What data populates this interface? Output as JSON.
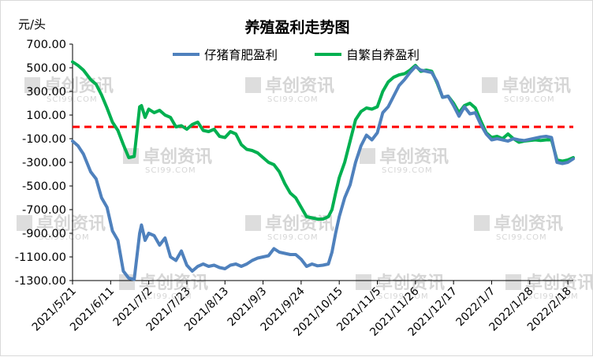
{
  "chart_data": {
    "type": "line",
    "title": "养殖盈利走势图",
    "unit_label": "元/头",
    "ylim": [
      -1300,
      700
    ],
    "y_ticks": [
      700,
      500,
      300,
      100,
      -100,
      -300,
      -500,
      -700,
      -900,
      -1100,
      -1300
    ],
    "y_tick_labels": [
      "700.00",
      "500.00",
      "300.00",
      "100.00",
      "-100.00",
      "-300.00",
      "-500.00",
      "-700.00",
      "-900.00",
      "-1100.00",
      "-1300.00"
    ],
    "x_start_date": "2021-05-21",
    "x_end_date": "2022-02-21",
    "x_tick_dates": [
      "2021-05-21",
      "2021-06-11",
      "2021-07-02",
      "2021-07-23",
      "2021-08-13",
      "2021-09-03",
      "2021-09-24",
      "2021-10-15",
      "2021-11-05",
      "2021-11-26",
      "2021-12-17",
      "2022-01-07",
      "2022-01-28",
      "2022-02-18"
    ],
    "x_tick_labels": [
      "2021/5/21",
      "2021/6/11",
      "2021/7/2",
      "2021/7/23",
      "2021/8/13",
      "2021/9/3",
      "2021/9/24",
      "2021/10/15",
      "2021/11/5",
      "2021/11/26",
      "2021/12/17",
      "2022/1/7",
      "2022/1/28",
      "2022/2/18"
    ],
    "reference_line": {
      "value": 0,
      "color": "#ff0000",
      "style": "dashed"
    },
    "grid": false,
    "legend_position": "top",
    "watermark": {
      "text_cn": "卓创资讯",
      "text_en": "SCI99.COM"
    },
    "series": [
      {
        "name": "仔猪育肥盈利",
        "color": "#4f81bd",
        "points": [
          [
            "2021-05-21",
            -120
          ],
          [
            "2021-05-24",
            -160
          ],
          [
            "2021-05-27",
            -230
          ],
          [
            "2021-05-31",
            -380
          ],
          [
            "2021-06-03",
            -440
          ],
          [
            "2021-06-06",
            -600
          ],
          [
            "2021-06-09",
            -680
          ],
          [
            "2021-06-12",
            -880
          ],
          [
            "2021-06-15",
            -960
          ],
          [
            "2021-06-18",
            -1220
          ],
          [
            "2021-06-21",
            -1280
          ],
          [
            "2021-06-24",
            -1290
          ],
          [
            "2021-06-27",
            -900
          ],
          [
            "2021-06-28",
            -830
          ],
          [
            "2021-06-30",
            -960
          ],
          [
            "2021-07-02",
            -900
          ],
          [
            "2021-07-05",
            -920
          ],
          [
            "2021-07-08",
            -1000
          ],
          [
            "2021-07-11",
            -940
          ],
          [
            "2021-07-14",
            -1100
          ],
          [
            "2021-07-17",
            -1130
          ],
          [
            "2021-07-20",
            -1050
          ],
          [
            "2021-07-23",
            -1170
          ],
          [
            "2021-07-26",
            -1220
          ],
          [
            "2021-07-29",
            -1180
          ],
          [
            "2021-08-01",
            -1160
          ],
          [
            "2021-08-04",
            -1180
          ],
          [
            "2021-08-07",
            -1170
          ],
          [
            "2021-08-10",
            -1190
          ],
          [
            "2021-08-13",
            -1200
          ],
          [
            "2021-08-16",
            -1170
          ],
          [
            "2021-08-19",
            -1160
          ],
          [
            "2021-08-22",
            -1180
          ],
          [
            "2021-08-25",
            -1160
          ],
          [
            "2021-08-28",
            -1130
          ],
          [
            "2021-08-31",
            -1110
          ],
          [
            "2021-09-03",
            -1100
          ],
          [
            "2021-09-06",
            -1090
          ],
          [
            "2021-09-09",
            -1030
          ],
          [
            "2021-09-12",
            -1060
          ],
          [
            "2021-09-15",
            -1070
          ],
          [
            "2021-09-18",
            -1080
          ],
          [
            "2021-09-21",
            -1080
          ],
          [
            "2021-09-24",
            -1120
          ],
          [
            "2021-09-27",
            -1180
          ],
          [
            "2021-09-30",
            -1160
          ],
          [
            "2021-10-03",
            -1175
          ],
          [
            "2021-10-06",
            -1170
          ],
          [
            "2021-10-09",
            -1160
          ],
          [
            "2021-10-11",
            -1060
          ],
          [
            "2021-10-13",
            -900
          ],
          [
            "2021-10-15",
            -760
          ],
          [
            "2021-10-18",
            -600
          ],
          [
            "2021-10-21",
            -490
          ],
          [
            "2021-10-24",
            -300
          ],
          [
            "2021-10-27",
            -160
          ],
          [
            "2021-10-30",
            -70
          ],
          [
            "2021-11-02",
            -110
          ],
          [
            "2021-11-05",
            -50
          ],
          [
            "2021-11-08",
            120
          ],
          [
            "2021-11-11",
            170
          ],
          [
            "2021-11-14",
            260
          ],
          [
            "2021-11-17",
            350
          ],
          [
            "2021-11-20",
            400
          ],
          [
            "2021-11-23",
            460
          ],
          [
            "2021-11-26",
            510
          ],
          [
            "2021-11-29",
            480
          ],
          [
            "2021-12-02",
            470
          ],
          [
            "2021-12-05",
            460
          ],
          [
            "2021-12-08",
            380
          ],
          [
            "2021-12-11",
            250
          ],
          [
            "2021-12-14",
            260
          ],
          [
            "2021-12-17",
            180
          ],
          [
            "2021-12-20",
            90
          ],
          [
            "2021-12-23",
            170
          ],
          [
            "2021-12-26",
            110
          ],
          [
            "2021-12-29",
            120
          ],
          [
            "2022-01-01",
            20
          ],
          [
            "2022-01-04",
            -60
          ],
          [
            "2022-01-07",
            -110
          ],
          [
            "2022-01-10",
            -100
          ],
          [
            "2022-01-13",
            -110
          ],
          [
            "2022-01-16",
            -120
          ],
          [
            "2022-01-19",
            -100
          ],
          [
            "2022-01-22",
            -110
          ],
          [
            "2022-01-25",
            -115
          ],
          [
            "2022-01-28",
            -105
          ],
          [
            "2022-01-31",
            -95
          ],
          [
            "2022-02-03",
            -85
          ],
          [
            "2022-02-06",
            -80
          ],
          [
            "2022-02-09",
            -90
          ],
          [
            "2022-02-12",
            -300
          ],
          [
            "2022-02-15",
            -310
          ],
          [
            "2022-02-18",
            -300
          ],
          [
            "2022-02-21",
            -270
          ]
        ]
      },
      {
        "name": "自繁自养盈利",
        "color": "#00b050",
        "points": [
          [
            "2021-05-21",
            550
          ],
          [
            "2021-05-24",
            520
          ],
          [
            "2021-05-27",
            480
          ],
          [
            "2021-05-31",
            400
          ],
          [
            "2021-06-03",
            360
          ],
          [
            "2021-06-06",
            270
          ],
          [
            "2021-06-09",
            160
          ],
          [
            "2021-06-12",
            40
          ],
          [
            "2021-06-15",
            -30
          ],
          [
            "2021-06-18",
            -150
          ],
          [
            "2021-06-21",
            -260
          ],
          [
            "2021-06-24",
            -250
          ],
          [
            "2021-06-27",
            170
          ],
          [
            "2021-06-28",
            180
          ],
          [
            "2021-06-30",
            80
          ],
          [
            "2021-07-02",
            150
          ],
          [
            "2021-07-05",
            120
          ],
          [
            "2021-07-08",
            140
          ],
          [
            "2021-07-11",
            100
          ],
          [
            "2021-07-14",
            80
          ],
          [
            "2021-07-17",
            0
          ],
          [
            "2021-07-20",
            10
          ],
          [
            "2021-07-23",
            -20
          ],
          [
            "2021-07-26",
            20
          ],
          [
            "2021-07-29",
            40
          ],
          [
            "2021-08-01",
            -30
          ],
          [
            "2021-08-04",
            -40
          ],
          [
            "2021-08-07",
            -20
          ],
          [
            "2021-08-10",
            -80
          ],
          [
            "2021-08-13",
            -90
          ],
          [
            "2021-08-16",
            -40
          ],
          [
            "2021-08-19",
            -60
          ],
          [
            "2021-08-22",
            -150
          ],
          [
            "2021-08-25",
            -190
          ],
          [
            "2021-08-28",
            -200
          ],
          [
            "2021-08-31",
            -220
          ],
          [
            "2021-09-03",
            -260
          ],
          [
            "2021-09-06",
            -300
          ],
          [
            "2021-09-09",
            -320
          ],
          [
            "2021-09-12",
            -380
          ],
          [
            "2021-09-15",
            -480
          ],
          [
            "2021-09-18",
            -560
          ],
          [
            "2021-09-21",
            -600
          ],
          [
            "2021-09-24",
            -680
          ],
          [
            "2021-09-27",
            -760
          ],
          [
            "2021-09-30",
            -770
          ],
          [
            "2021-10-03",
            -780
          ],
          [
            "2021-10-06",
            -780
          ],
          [
            "2021-10-09",
            -760
          ],
          [
            "2021-10-11",
            -700
          ],
          [
            "2021-10-13",
            -560
          ],
          [
            "2021-10-15",
            -430
          ],
          [
            "2021-10-18",
            -300
          ],
          [
            "2021-10-21",
            -120
          ],
          [
            "2021-10-24",
            60
          ],
          [
            "2021-10-27",
            130
          ],
          [
            "2021-10-30",
            160
          ],
          [
            "2021-11-02",
            150
          ],
          [
            "2021-11-05",
            170
          ],
          [
            "2021-11-08",
            300
          ],
          [
            "2021-11-11",
            380
          ],
          [
            "2021-11-14",
            420
          ],
          [
            "2021-11-17",
            440
          ],
          [
            "2021-11-20",
            450
          ],
          [
            "2021-11-23",
            480
          ],
          [
            "2021-11-26",
            520
          ],
          [
            "2021-11-29",
            470
          ],
          [
            "2021-12-02",
            480
          ],
          [
            "2021-12-05",
            470
          ],
          [
            "2021-12-08",
            370
          ],
          [
            "2021-12-11",
            250
          ],
          [
            "2021-12-14",
            260
          ],
          [
            "2021-12-17",
            200
          ],
          [
            "2021-12-20",
            120
          ],
          [
            "2021-12-23",
            180
          ],
          [
            "2021-12-26",
            200
          ],
          [
            "2021-12-29",
            160
          ],
          [
            "2022-01-01",
            50
          ],
          [
            "2022-01-04",
            -50
          ],
          [
            "2022-01-07",
            -90
          ],
          [
            "2022-01-10",
            -80
          ],
          [
            "2022-01-13",
            -100
          ],
          [
            "2022-01-16",
            -60
          ],
          [
            "2022-01-19",
            -100
          ],
          [
            "2022-01-22",
            -130
          ],
          [
            "2022-01-25",
            -120
          ],
          [
            "2022-01-28",
            -115
          ],
          [
            "2022-01-31",
            -110
          ],
          [
            "2022-02-03",
            -115
          ],
          [
            "2022-02-06",
            -110
          ],
          [
            "2022-02-09",
            -110
          ],
          [
            "2022-02-12",
            -280
          ],
          [
            "2022-02-15",
            -290
          ],
          [
            "2022-02-18",
            -280
          ],
          [
            "2022-02-21",
            -260
          ]
        ]
      }
    ]
  }
}
